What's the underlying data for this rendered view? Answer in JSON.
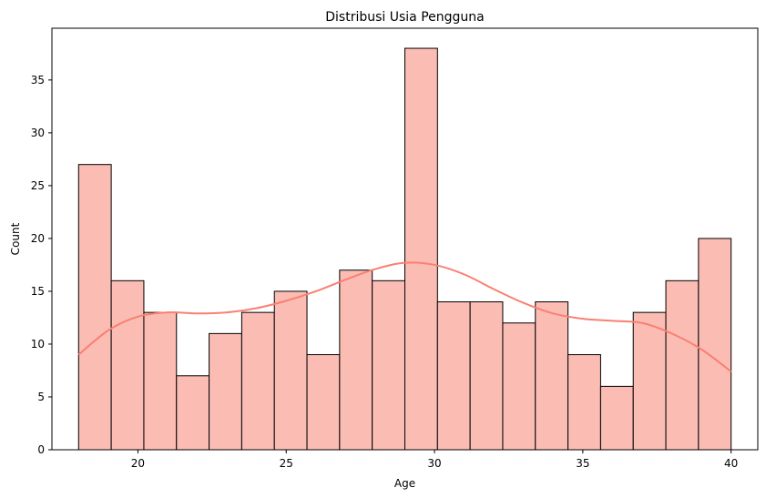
{
  "chart_data": {
    "type": "bar",
    "title": "Distribusi Usia Pengguna",
    "xlabel": "Age",
    "ylabel": "Count",
    "xlim": [
      17.1,
      40.9
    ],
    "ylim": [
      0,
      39.9
    ],
    "xticks": [
      20,
      25,
      30,
      35,
      40
    ],
    "yticks": [
      0,
      5,
      10,
      15,
      20,
      25,
      30,
      35
    ],
    "bin_edges": [
      18,
      19.1,
      20.2,
      21.3,
      22.4,
      23.5,
      24.6,
      25.7,
      26.8,
      27.9,
      29,
      30.1,
      31.2,
      32.3,
      33.4,
      34.5,
      35.6,
      36.7,
      37.8,
      38.9,
      40
    ],
    "values": [
      27,
      16,
      13,
      7,
      11,
      13,
      15,
      9,
      17,
      16,
      38,
      14,
      14,
      12,
      14,
      9,
      6,
      13,
      16,
      20
    ],
    "kde": {
      "x": [
        18,
        19,
        20,
        21,
        22,
        23,
        24,
        25,
        26,
        27,
        28,
        29,
        30,
        31,
        32,
        33,
        34,
        35,
        36,
        37,
        38,
        39,
        40
      ],
      "y": [
        9.0,
        11.3,
        12.6,
        13.0,
        12.9,
        13.0,
        13.4,
        14.1,
        15.0,
        16.1,
        17.1,
        17.7,
        17.5,
        16.6,
        15.2,
        13.9,
        12.9,
        12.4,
        12.2,
        12.0,
        11.0,
        9.5,
        7.4
      ]
    },
    "grid": false,
    "colors": {
      "bar_fill": "#fbbcb4",
      "bar_edge": "#000000",
      "kde_line": "#fa8072"
    }
  }
}
